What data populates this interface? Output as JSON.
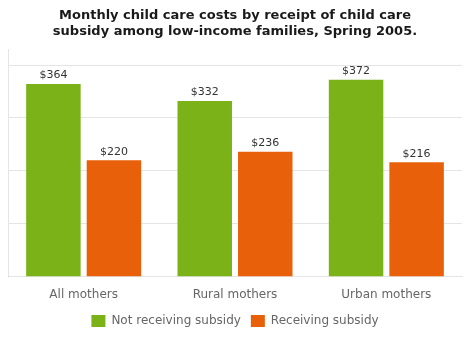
{
  "chart_data": {
    "type": "bar",
    "title": "Monthly child care costs by receipt of child care\nsubsidy among low-income families, Spring 2005.",
    "categories": [
      "All mothers",
      "Rural mothers",
      "Urban mothers"
    ],
    "series": [
      {
        "name": "Not receiving subsidy",
        "color": "#7ab217",
        "values": [
          364,
          332,
          372
        ],
        "value_labels": [
          "$364",
          "$332",
          "$372"
        ]
      },
      {
        "name": "Receiving subsidy",
        "color": "#e8610a",
        "values": [
          220,
          236,
          216
        ],
        "value_labels": [
          "$220",
          "$236",
          "$216"
        ]
      }
    ],
    "ylim": [
      0,
      430
    ],
    "yticks": [
      100,
      200,
      300,
      400
    ],
    "grid": true,
    "legend": "bottom",
    "data_labels": true,
    "tick_labels": "x"
  }
}
